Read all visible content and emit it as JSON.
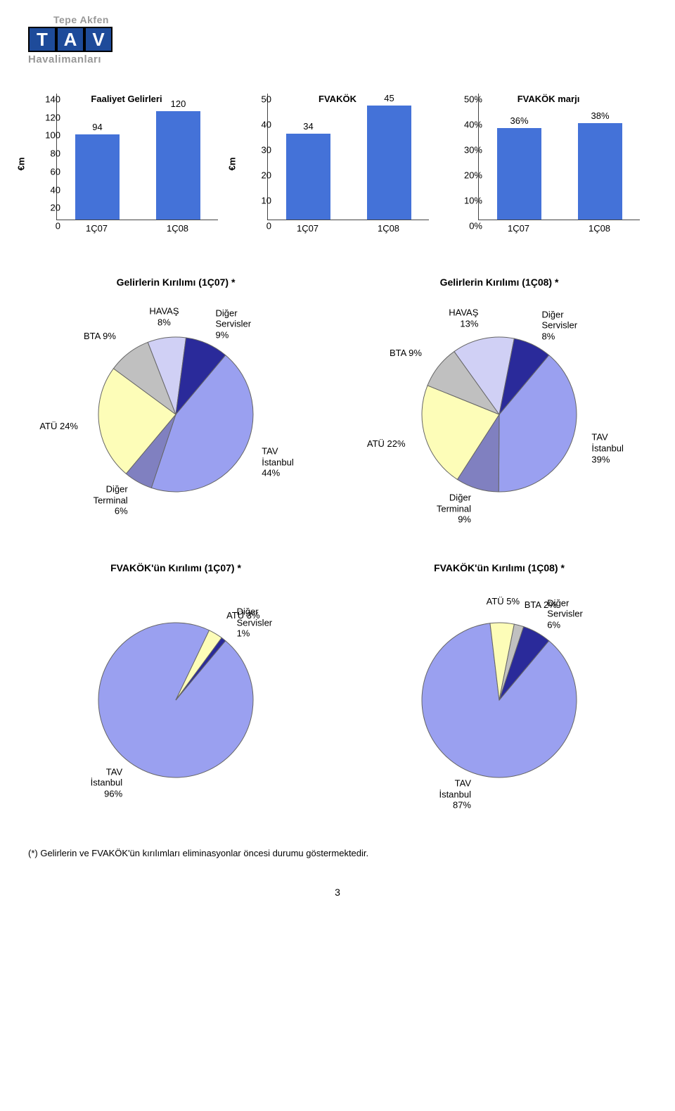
{
  "logo": {
    "tepe": "Tepe Akfen",
    "t": "T",
    "a": "A",
    "v": "V",
    "sub": "Havalimanları"
  },
  "bar_charts": [
    {
      "title": "Faaliyet Gelirleri",
      "ylabel": "€m",
      "ylim": [
        0,
        140
      ],
      "yticks": [
        0,
        20,
        40,
        60,
        80,
        100,
        120,
        140
      ],
      "categories": [
        "1Ç07",
        "1Ç08"
      ],
      "values": [
        94,
        120
      ],
      "value_labels": [
        "94",
        "120"
      ],
      "bar_color": "#4472d8",
      "bar_width": 0.55
    },
    {
      "title": "FVAKÖK",
      "ylabel": "€m",
      "ylim": [
        0,
        50
      ],
      "yticks": [
        0,
        10,
        20,
        30,
        40,
        50
      ],
      "categories": [
        "1Ç07",
        "1Ç08"
      ],
      "values": [
        34,
        45
      ],
      "value_labels": [
        "34",
        "45"
      ],
      "bar_color": "#4472d8",
      "bar_width": 0.55
    },
    {
      "title": "FVAKÖK marjı",
      "ylabel": "",
      "ylim": [
        0,
        50
      ],
      "yticks": [
        0,
        10,
        20,
        30,
        40,
        50
      ],
      "ytick_labels": [
        "0%",
        "10%",
        "20%",
        "30%",
        "40%",
        "50%"
      ],
      "categories": [
        "1Ç07",
        "1Ç08"
      ],
      "values": [
        36,
        38
      ],
      "value_labels": [
        "36%",
        "38%"
      ],
      "bar_color": "#4472d8",
      "bar_width": 0.55
    }
  ],
  "pies1": {
    "left": {
      "title": "Gelirlerin Kırılımı (1Ç07) *",
      "slices": [
        {
          "label1": "TAV",
          "label2": "İstanbul",
          "label3": "44%",
          "value": 44,
          "color": "#9aa0f0"
        },
        {
          "label1": "Diğer",
          "label2": "Terminal",
          "label3": "6%",
          "value": 6,
          "color": "#8080c0"
        },
        {
          "label1": "ATÜ 24%",
          "label2": "",
          "label3": "",
          "value": 24,
          "color": "#fdfdb8"
        },
        {
          "label1": "BTA 9%",
          "label2": "",
          "label3": "",
          "value": 9,
          "color": "#c0c0c0"
        },
        {
          "label1": "HAVAŞ",
          "label2": "8%",
          "label3": "",
          "value": 8,
          "color": "#d0d0f5"
        },
        {
          "label1": "Diğer",
          "label2": "Servisler",
          "label3": "9%",
          "value": 9,
          "color": "#2a2a9a"
        }
      ]
    },
    "right": {
      "title": "Gelirlerin Kırılımı  (1Ç08) *",
      "slices": [
        {
          "label1": "TAV",
          "label2": "İstanbul",
          "label3": "39%",
          "value": 39,
          "color": "#9aa0f0"
        },
        {
          "label1": "Diğer",
          "label2": "Terminal",
          "label3": "9%",
          "value": 9,
          "color": "#8080c0"
        },
        {
          "label1": "ATÜ 22%",
          "label2": "",
          "label3": "",
          "value": 22,
          "color": "#fdfdb8"
        },
        {
          "label1": "BTA 9%",
          "label2": "",
          "label3": "",
          "value": 9,
          "color": "#c0c0c0"
        },
        {
          "label1": "HAVAŞ",
          "label2": "13%",
          "label3": "",
          "value": 13,
          "color": "#d0d0f5"
        },
        {
          "label1": "Diğer",
          "label2": "Servisler",
          "label3": "8%",
          "value": 8,
          "color": "#2a2a9a"
        }
      ]
    }
  },
  "pies2": {
    "left": {
      "title": "FVAKÖK'ün Kırılımı (1Ç07) *",
      "slices": [
        {
          "label1": "TAV",
          "label2": "İstanbul",
          "label3": "96%",
          "value": 96,
          "color": "#9aa0f0"
        },
        {
          "label1": "ATÜ 3%",
          "label2": "",
          "label3": "",
          "value": 3,
          "color": "#fdfdb8"
        },
        {
          "label1": "Diğer",
          "label2": "Servisler",
          "label3": "1%",
          "value": 1,
          "color": "#2a2a9a"
        }
      ]
    },
    "right": {
      "title": "FVAKÖK'ün Kırılımı (1Ç08) *",
      "slices": [
        {
          "label1": "TAV",
          "label2": "İstanbul",
          "label3": "87%",
          "value": 87,
          "color": "#9aa0f0"
        },
        {
          "label1": "ATÜ 5%",
          "label2": "",
          "label3": "",
          "value": 5,
          "color": "#fdfdb8"
        },
        {
          "label1": "BTA 2%",
          "label2": "",
          "label3": "",
          "value": 2,
          "color": "#c0c0c0"
        },
        {
          "label1": "Diğer",
          "label2": "Servisler",
          "label3": "6%",
          "value": 6,
          "color": "#2a2a9a"
        }
      ]
    }
  },
  "footnote": "(*) Gelirlerin ve FVAKÖK'ün kırılımları eliminasyonlar öncesi durumu göstermektedir.",
  "page_num": "3",
  "pie_radius": 110,
  "pie_start_angle": 40,
  "pie_stroke": "#666666"
}
